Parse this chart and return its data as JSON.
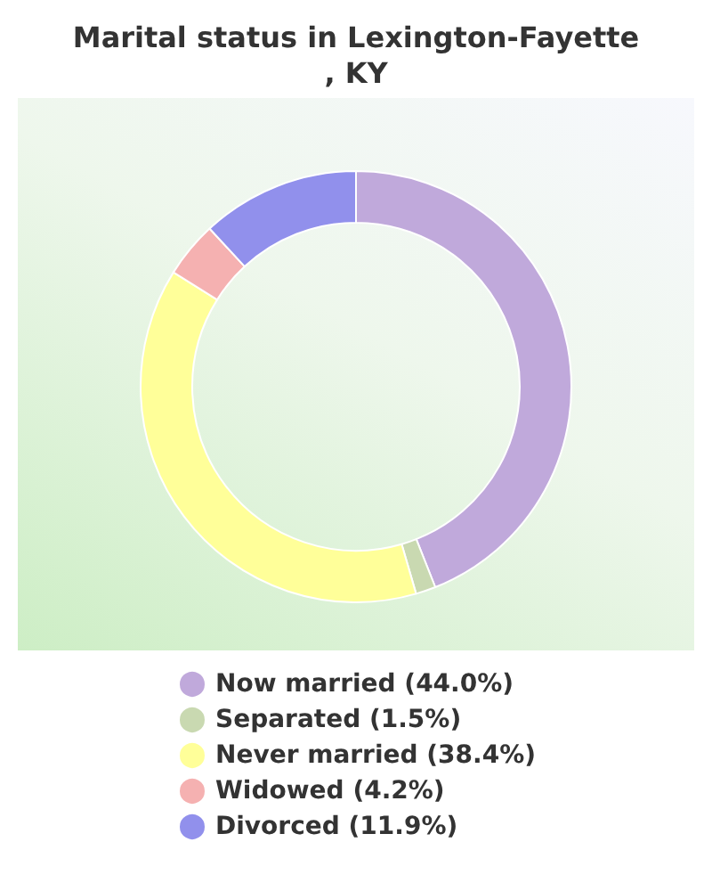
{
  "chart_data": {
    "type": "donut",
    "title": "Marital status in Lexington-Fayette, KY",
    "categories": [
      "Now married (44.0%)",
      "Separated (1.5%)",
      "Never married (38.4%)",
      "Widowed (4.2%)",
      "Divorced (11.9%)"
    ],
    "values": [
      44.0,
      1.5,
      38.4,
      4.2,
      11.9
    ],
    "colors": [
      "#c0a9db",
      "#c9d9b1",
      "#ffff99",
      "#f5b1b1",
      "#9190ec"
    ],
    "legend": "bottom"
  }
}
